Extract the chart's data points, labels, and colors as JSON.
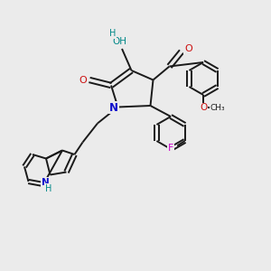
{
  "background_color": "#ebebeb",
  "bond_color": "#1a1a1a",
  "n_color": "#1010cc",
  "o_color": "#cc1010",
  "f_color": "#cc00cc",
  "oh_color": "#008888",
  "figsize": [
    3.0,
    3.0
  ],
  "dpi": 100,
  "xlim": [
    0,
    10
  ],
  "ylim": [
    0,
    10
  ]
}
